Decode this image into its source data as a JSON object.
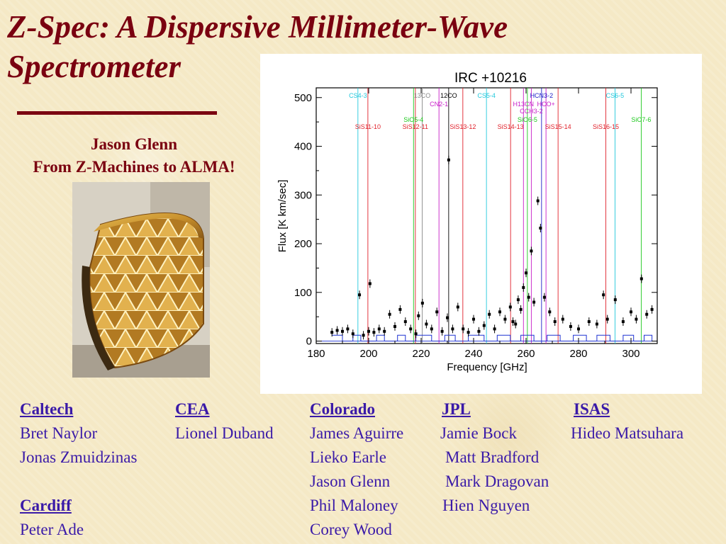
{
  "slide": {
    "title": "Z-Spec:  A Dispersive Millimeter-Wave Spectrometer",
    "author": "Jason Glenn",
    "subtitle": "From Z-Machines to ALMA!"
  },
  "colors": {
    "title": "#7a0010",
    "names": "#3a1aa8",
    "background": "#f5e9c6"
  },
  "institutions": [
    {
      "name": "Caltech",
      "people": [
        "Bret Naylor",
        "Jonas Zmuidzinas"
      ]
    },
    {
      "name": "Cardiff",
      "people": [
        "Peter Ade"
      ]
    },
    {
      "name": "CEA",
      "people": [
        "Lionel Duband"
      ]
    },
    {
      "name": "Colorado",
      "people": [
        "James Aguirre",
        "Lieko Earle",
        "Jason Glenn",
        "Phil Maloney",
        "Corey Wood"
      ]
    },
    {
      "name": "JPL",
      "people": [
        "Jamie Bock",
        "Matt Bradford",
        "Mark Dragovan",
        "Hien Nguyen"
      ]
    },
    {
      "name": "ISAS",
      "people": [
        "Hideo Matsuhara"
      ]
    }
  ],
  "chart_data": {
    "type": "scatter",
    "title": "IRC +10216",
    "xlabel": "Frequency [GHz]",
    "ylabel": "Flux [K km/sec]",
    "xlim": [
      180,
      310
    ],
    "ylim": [
      -5,
      520
    ],
    "xticks": [
      180,
      200,
      220,
      240,
      260,
      280,
      300
    ],
    "yticks": [
      0,
      100,
      200,
      300,
      400,
      500
    ],
    "points": [
      {
        "x": 186,
        "y": 18
      },
      {
        "x": 188,
        "y": 22
      },
      {
        "x": 190,
        "y": 20
      },
      {
        "x": 192,
        "y": 25
      },
      {
        "x": 194,
        "y": 15
      },
      {
        "x": 196.5,
        "y": 95
      },
      {
        "x": 198,
        "y": 12
      },
      {
        "x": 200,
        "y": 20
      },
      {
        "x": 200.5,
        "y": 118
      },
      {
        "x": 202,
        "y": 18
      },
      {
        "x": 204,
        "y": 25
      },
      {
        "x": 206,
        "y": 20
      },
      {
        "x": 208,
        "y": 55
      },
      {
        "x": 210,
        "y": 30
      },
      {
        "x": 212,
        "y": 65
      },
      {
        "x": 214,
        "y": 40
      },
      {
        "x": 216,
        "y": 25
      },
      {
        "x": 218,
        "y": 15
      },
      {
        "x": 219,
        "y": 52
      },
      {
        "x": 220.5,
        "y": 78
      },
      {
        "x": 222,
        "y": 35
      },
      {
        "x": 224,
        "y": 25
      },
      {
        "x": 226,
        "y": 60
      },
      {
        "x": 228,
        "y": 20
      },
      {
        "x": 230,
        "y": 48
      },
      {
        "x": 230.5,
        "y": 372
      },
      {
        "x": 232,
        "y": 25
      },
      {
        "x": 234,
        "y": 70
      },
      {
        "x": 236,
        "y": 25
      },
      {
        "x": 238,
        "y": 18
      },
      {
        "x": 240,
        "y": 45
      },
      {
        "x": 242,
        "y": 20
      },
      {
        "x": 244,
        "y": 32
      },
      {
        "x": 246,
        "y": 55
      },
      {
        "x": 248,
        "y": 25
      },
      {
        "x": 250,
        "y": 60
      },
      {
        "x": 252,
        "y": 45
      },
      {
        "x": 254,
        "y": 70
      },
      {
        "x": 255,
        "y": 40
      },
      {
        "x": 256,
        "y": 35
      },
      {
        "x": 257,
        "y": 85
      },
      {
        "x": 258,
        "y": 65
      },
      {
        "x": 259,
        "y": 110
      },
      {
        "x": 260,
        "y": 140
      },
      {
        "x": 261,
        "y": 90
      },
      {
        "x": 262,
        "y": 185
      },
      {
        "x": 263,
        "y": 80
      },
      {
        "x": 264.5,
        "y": 288
      },
      {
        "x": 265.5,
        "y": 232
      },
      {
        "x": 267,
        "y": 90
      },
      {
        "x": 269,
        "y": 60
      },
      {
        "x": 271,
        "y": 40
      },
      {
        "x": 274,
        "y": 45
      },
      {
        "x": 277,
        "y": 30
      },
      {
        "x": 280,
        "y": 25
      },
      {
        "x": 284,
        "y": 40
      },
      {
        "x": 287,
        "y": 35
      },
      {
        "x": 289.5,
        "y": 95
      },
      {
        "x": 291,
        "y": 45
      },
      {
        "x": 294,
        "y": 85
      },
      {
        "x": 297,
        "y": 40
      },
      {
        "x": 300,
        "y": 60
      },
      {
        "x": 302,
        "y": 45
      },
      {
        "x": 304,
        "y": 128
      },
      {
        "x": 306,
        "y": 55
      },
      {
        "x": 308,
        "y": 65
      }
    ],
    "lines": [
      {
        "label": "CS4-3",
        "x": 195.9,
        "color": "#22c8dc",
        "row": 0
      },
      {
        "label": "13CO",
        "x": 220.4,
        "color": "#888888",
        "row": 0
      },
      {
        "label": "12CO",
        "x": 230.5,
        "color": "#000000",
        "row": 0
      },
      {
        "label": "CS5-4",
        "x": 244.9,
        "color": "#22c8dc",
        "row": 0
      },
      {
        "label": "HCN3-2",
        "x": 265.9,
        "color": "#1e1ec8",
        "row": 0
      },
      {
        "label": "CS6-5",
        "x": 293.9,
        "color": "#22c8dc",
        "row": 0
      },
      {
        "label": "CN2-1",
        "x": 226.8,
        "color": "#c81ec8",
        "row": 1
      },
      {
        "label": "H13CN",
        "x": 259.0,
        "color": "#c81ec8",
        "row": 1
      },
      {
        "label": "HCO+",
        "x": 267.6,
        "color": "#c81ec8",
        "row": 1
      },
      {
        "label": "CCH3-2",
        "x": 262.0,
        "color": "#c81ec8",
        "row": 2
      },
      {
        "label": "SiO5-4",
        "x": 217.1,
        "color": "#1ec81e",
        "row": 3
      },
      {
        "label": "SiO6-5",
        "x": 260.5,
        "color": "#1ec81e",
        "row": 3
      },
      {
        "label": "SiO7-6",
        "x": 303.9,
        "color": "#1ec81e",
        "row": 3
      },
      {
        "label": "SiS11-10",
        "x": 199.7,
        "color": "#e0202a",
        "row": 4
      },
      {
        "label": "SiS12-11",
        "x": 217.8,
        "color": "#e0202a",
        "row": 4
      },
      {
        "label": "SiS13-12",
        "x": 235.9,
        "color": "#e0202a",
        "row": 4
      },
      {
        "label": "SiS14-13",
        "x": 254.1,
        "color": "#e0202a",
        "row": 4
      },
      {
        "label": "SiS15-14",
        "x": 272.2,
        "color": "#e0202a",
        "row": 4
      },
      {
        "label": "SiS16-15",
        "x": 290.4,
        "color": "#e0202a",
        "row": 4
      }
    ]
  }
}
